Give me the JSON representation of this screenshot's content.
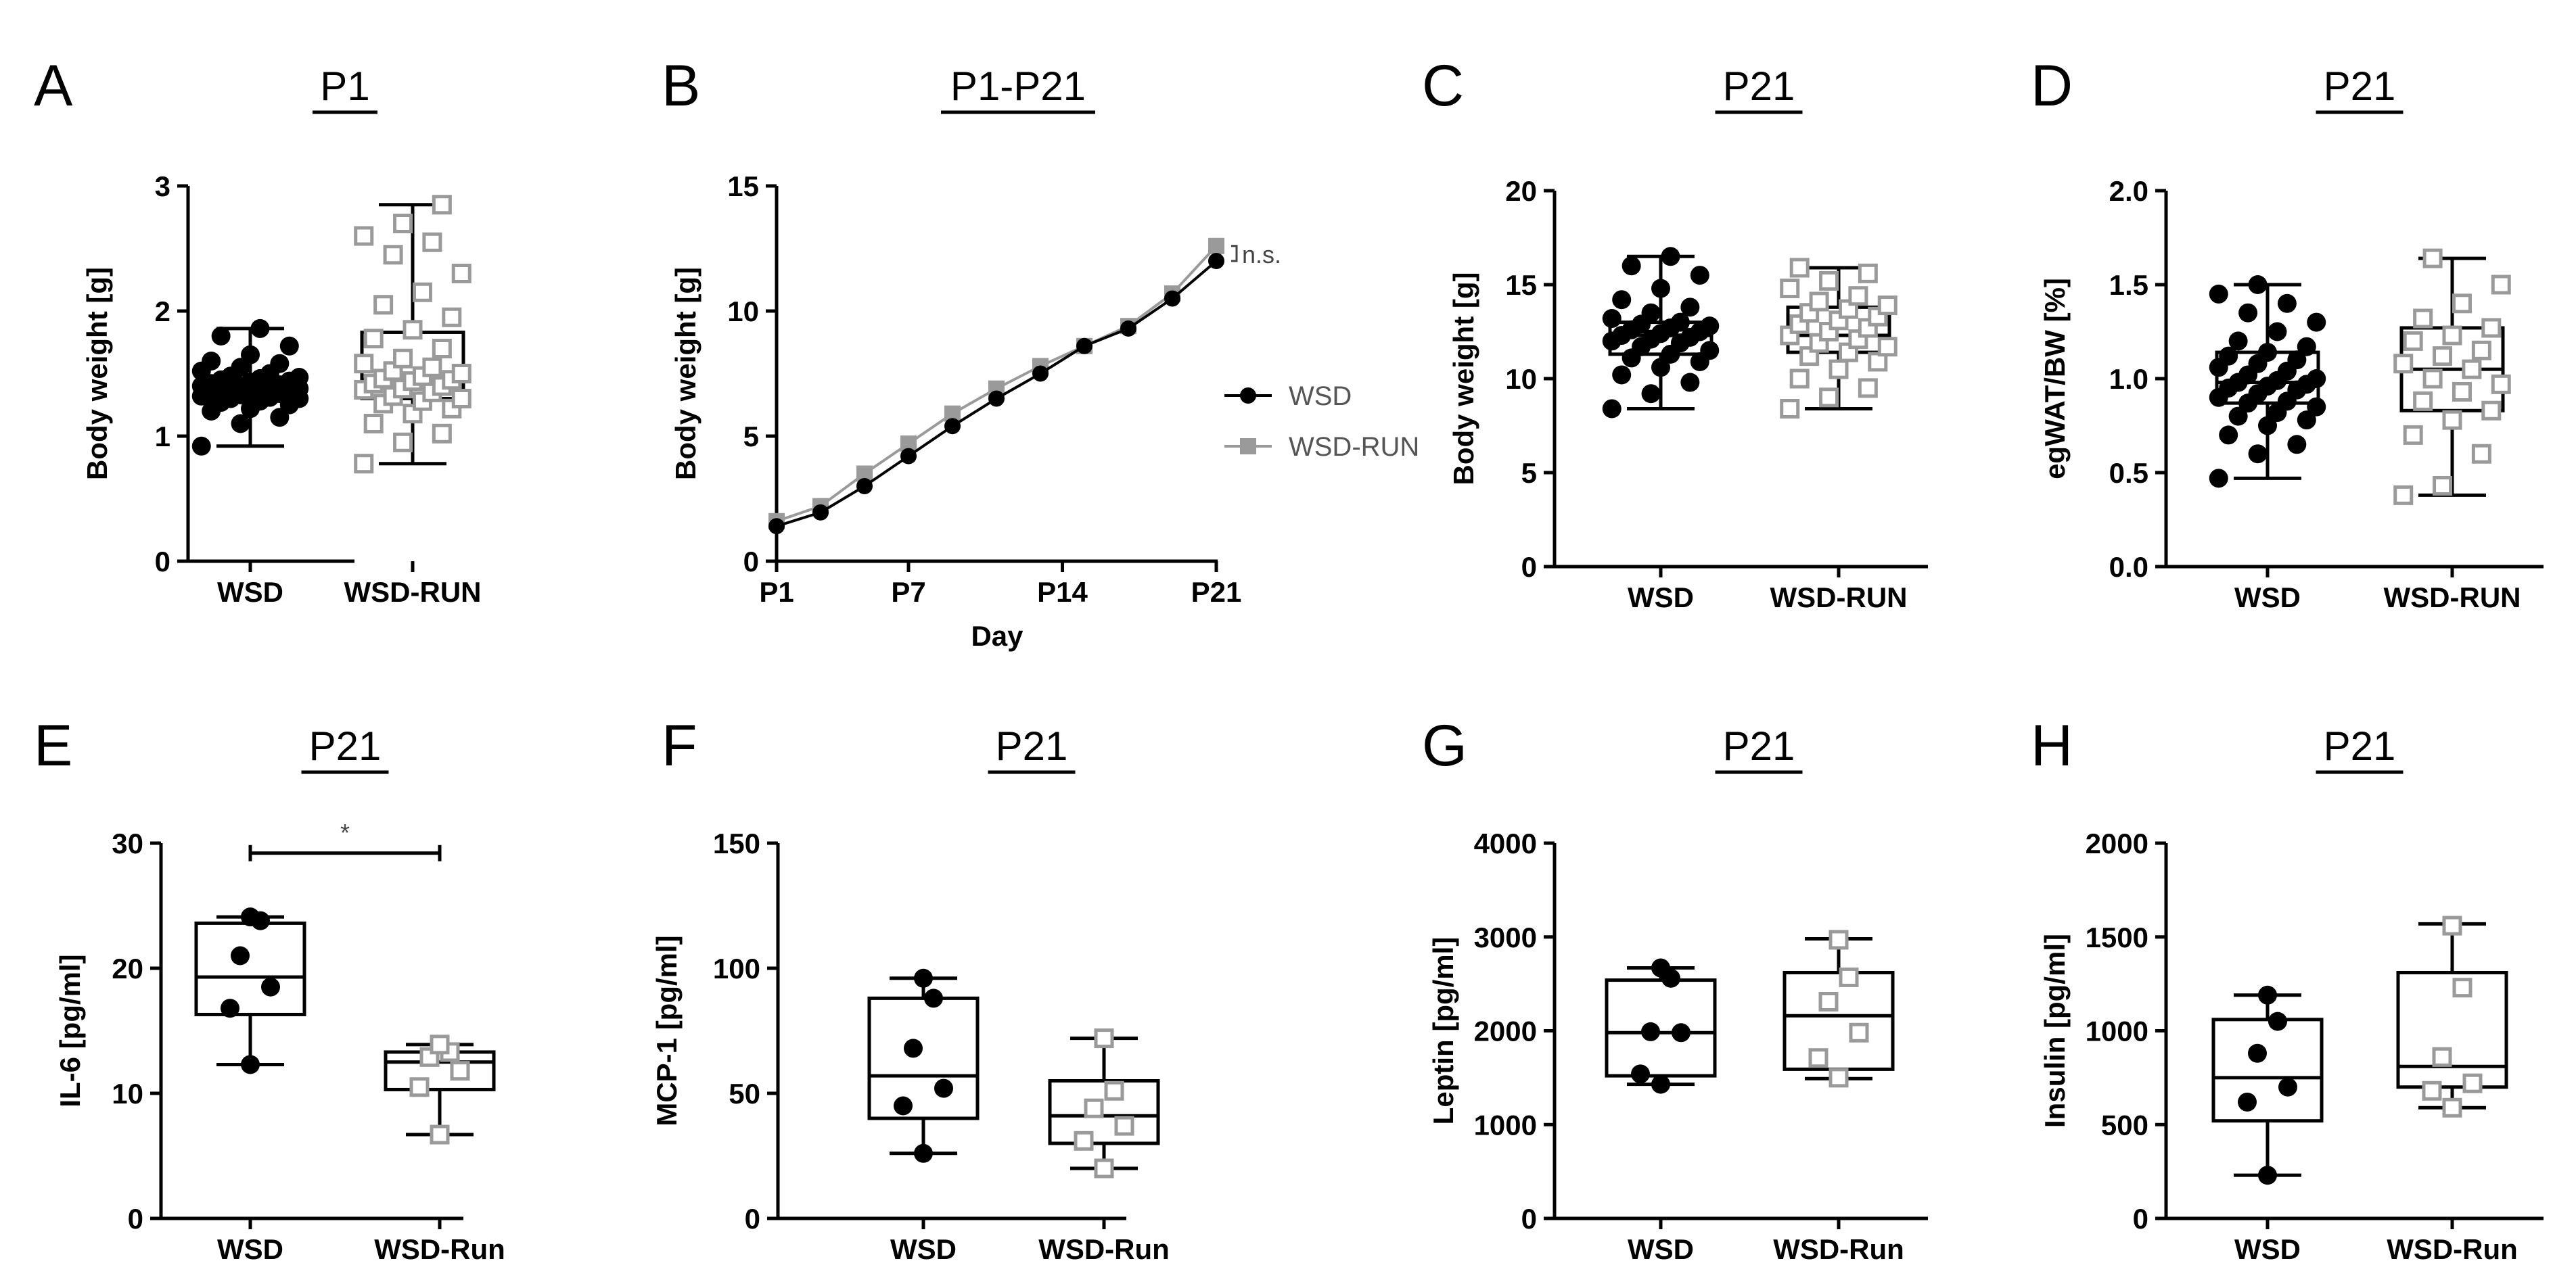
{
  "chart_data": [
    {
      "panel": "A",
      "type": "boxplot",
      "title": "P1",
      "ylabel": "Body weight [g]",
      "xlabel": "",
      "ylim": [
        0,
        3
      ],
      "yticks": [
        0,
        1,
        2,
        3
      ],
      "ytick_labels": [
        "0",
        "1",
        "2",
        "3"
      ],
      "categories": [
        "WSD",
        "WSD-RUN"
      ],
      "boxes": [
        {
          "name": "WSD",
          "min": 0.92,
          "q1": 1.32,
          "median": 1.38,
          "q3": 1.46,
          "max": 1.86
        },
        {
          "name": "WSD-RUN",
          "min": 0.78,
          "q1": 1.3,
          "median": 1.45,
          "q3": 1.83,
          "max": 2.85
        }
      ],
      "points": [
        [
          0.92,
          1.1,
          1.15,
          1.2,
          1.22,
          1.25,
          1.27,
          1.28,
          1.3,
          1.3,
          1.31,
          1.32,
          1.33,
          1.34,
          1.34,
          1.35,
          1.36,
          1.36,
          1.37,
          1.38,
          1.38,
          1.39,
          1.4,
          1.4,
          1.41,
          1.42,
          1.43,
          1.44,
          1.45,
          1.46,
          1.47,
          1.48,
          1.5,
          1.52,
          1.55,
          1.58,
          1.6,
          1.65,
          1.72,
          1.8,
          1.86
        ],
        [
          0.78,
          0.95,
          1.02,
          1.1,
          1.18,
          1.22,
          1.26,
          1.28,
          1.3,
          1.32,
          1.35,
          1.37,
          1.38,
          1.4,
          1.42,
          1.44,
          1.45,
          1.46,
          1.48,
          1.5,
          1.52,
          1.55,
          1.58,
          1.62,
          1.7,
          1.78,
          1.85,
          1.95,
          2.05,
          2.15,
          2.3,
          2.45,
          2.55,
          2.6,
          2.7,
          2.85
        ]
      ]
    },
    {
      "panel": "B",
      "type": "line",
      "title": "P1-P21",
      "ylabel": "Body weight [g]",
      "xlabel": "Day",
      "ylim": [
        0,
        15
      ],
      "yticks": [
        0,
        5,
        10,
        15
      ],
      "ytick_labels": [
        "0",
        "5",
        "10",
        "15"
      ],
      "xlim": [
        1,
        21
      ],
      "xticks": [
        1,
        7,
        14,
        21
      ],
      "xtick_labels": [
        "P1",
        "P7",
        "P14",
        "P21"
      ],
      "x": [
        1,
        3,
        5,
        7,
        9,
        11,
        13,
        15,
        17,
        19,
        21
      ],
      "series": [
        {
          "name": "WSD",
          "values": [
            1.4,
            1.95,
            3.0,
            4.2,
            5.4,
            6.5,
            7.5,
            8.6,
            9.3,
            10.5,
            12.0
          ]
        },
        {
          "name": "WSD-RUN",
          "values": [
            1.6,
            2.2,
            3.5,
            4.7,
            5.9,
            6.9,
            7.8,
            8.6,
            9.4,
            10.7,
            12.6
          ]
        }
      ],
      "annotation": "n.s."
    },
    {
      "panel": "C",
      "type": "boxplot",
      "title": "P21",
      "ylabel": "Body weight [g]",
      "xlabel": "",
      "ylim": [
        0,
        20
      ],
      "yticks": [
        0,
        5,
        10,
        15,
        20
      ],
      "ytick_labels": [
        "0",
        "5",
        "10",
        "15",
        "20"
      ],
      "categories": [
        "WSD",
        "WSD-RUN"
      ],
      "boxes": [
        {
          "name": "WSD",
          "min": 8.4,
          "q1": 11.3,
          "median": 12.3,
          "q3": 13.0,
          "max": 16.5
        },
        {
          "name": "WSD-RUN",
          "min": 8.4,
          "q1": 11.4,
          "median": 12.3,
          "q3": 13.8,
          "max": 15.9
        }
      ],
      "points": [
        [
          8.4,
          9.2,
          9.8,
          10.2,
          10.6,
          10.9,
          11.1,
          11.3,
          11.5,
          11.7,
          11.9,
          12.0,
          12.1,
          12.2,
          12.3,
          12.4,
          12.5,
          12.6,
          12.7,
          12.8,
          12.9,
          13.0,
          13.2,
          13.5,
          13.8,
          14.2,
          14.8,
          15.5,
          16.0,
          16.5
        ],
        [
          8.4,
          9.0,
          9.5,
          10.0,
          10.5,
          10.9,
          11.2,
          11.4,
          11.7,
          11.9,
          12.1,
          12.3,
          12.5,
          12.7,
          12.9,
          13.1,
          13.3,
          13.5,
          13.7,
          13.9,
          14.1,
          14.4,
          14.8,
          15.2,
          15.6,
          15.9
        ]
      ]
    },
    {
      "panel": "D",
      "type": "boxplot",
      "title": "P21",
      "ylabel": "egWAT/BW [%]",
      "xlabel": "",
      "ylim": [
        0,
        2
      ],
      "yticks": [
        0,
        0.5,
        1.0,
        1.5,
        2.0
      ],
      "ytick_labels": [
        "0.0",
        "0.5",
        "1.0",
        "1.5",
        "2.0"
      ],
      "categories": [
        "WSD",
        "WSD-RUN"
      ],
      "boxes": [
        {
          "name": "WSD",
          "min": 0.47,
          "q1": 0.87,
          "median": 0.98,
          "q3": 1.14,
          "max": 1.5
        },
        {
          "name": "WSD-RUN",
          "min": 0.38,
          "q1": 0.83,
          "median": 1.05,
          "q3": 1.27,
          "max": 1.64
        }
      ],
      "points": [
        [
          0.47,
          0.6,
          0.65,
          0.7,
          0.75,
          0.78,
          0.8,
          0.82,
          0.85,
          0.87,
          0.88,
          0.9,
          0.92,
          0.94,
          0.95,
          0.96,
          0.97,
          0.98,
          0.99,
          1.0,
          1.02,
          1.04,
          1.06,
          1.08,
          1.1,
          1.12,
          1.14,
          1.17,
          1.2,
          1.25,
          1.3,
          1.35,
          1.4,
          1.45,
          1.5
        ],
        [
          0.38,
          0.43,
          0.6,
          0.7,
          0.78,
          0.83,
          0.88,
          0.93,
          0.97,
          1.0,
          1.05,
          1.08,
          1.12,
          1.15,
          1.2,
          1.23,
          1.27,
          1.32,
          1.4,
          1.5,
          1.64
        ]
      ]
    },
    {
      "panel": "E",
      "type": "boxplot",
      "title": "P21",
      "ylabel": "IL-6 [pg/ml]",
      "xlabel": "",
      "ylim": [
        0,
        30
      ],
      "yticks": [
        0,
        10,
        20,
        30
      ],
      "ytick_labels": [
        "0",
        "10",
        "20",
        "30"
      ],
      "categories": [
        "WSD",
        "WSD-Run"
      ],
      "boxes": [
        {
          "name": "WSD",
          "min": 12.3,
          "q1": 16.3,
          "median": 19.3,
          "q3": 23.6,
          "max": 24.1
        },
        {
          "name": "WSD-Run",
          "min": 6.7,
          "q1": 10.3,
          "median": 12.5,
          "q3": 13.3,
          "max": 13.9
        }
      ],
      "points": [
        [
          12.3,
          16.8,
          18.5,
          21.0,
          23.8,
          24.1
        ],
        [
          6.7,
          10.5,
          11.8,
          12.9,
          13.3,
          13.9
        ]
      ],
      "significance": "*"
    },
    {
      "panel": "F",
      "type": "boxplot",
      "title": "P21",
      "ylabel": "MCP-1 [pg/ml]",
      "xlabel": "",
      "ylim": [
        0,
        150
      ],
      "yticks": [
        0,
        50,
        100,
        150
      ],
      "ytick_labels": [
        "0",
        "50",
        "100",
        "150"
      ],
      "categories": [
        "WSD",
        "WSD-Run"
      ],
      "boxes": [
        {
          "name": "WSD",
          "min": 26,
          "q1": 40,
          "median": 57,
          "q3": 88,
          "max": 96
        },
        {
          "name": "WSD-Run",
          "min": 20,
          "q1": 30,
          "median": 41,
          "q3": 55,
          "max": 72
        }
      ],
      "points": [
        [
          26,
          45,
          52,
          68,
          88,
          96
        ],
        [
          20,
          31,
          37,
          44,
          51,
          72
        ]
      ]
    },
    {
      "panel": "G",
      "type": "boxplot",
      "title": "P21",
      "ylabel": "Leptin [pg/ml]",
      "xlabel": "",
      "ylim": [
        0,
        4000
      ],
      "yticks": [
        0,
        1000,
        2000,
        3000,
        4000
      ],
      "ytick_labels": [
        "0",
        "1000",
        "2000",
        "3000",
        "4000"
      ],
      "categories": [
        "WSD",
        "WSD-Run"
      ],
      "boxes": [
        {
          "name": "WSD",
          "min": 1430,
          "q1": 1520,
          "median": 1980,
          "q3": 2540,
          "max": 2670
        },
        {
          "name": "WSD-Run",
          "min": 1490,
          "q1": 1590,
          "median": 2160,
          "q3": 2620,
          "max": 2980
        }
      ],
      "points": [
        [
          1430,
          1540,
          1980,
          1990,
          2560,
          2670
        ],
        [
          1500,
          1710,
          1980,
          2310,
          2570,
          2970
        ]
      ]
    },
    {
      "panel": "H",
      "type": "boxplot",
      "title": "P21",
      "ylabel": "Insulin [pg/ml]",
      "xlabel": "",
      "ylim": [
        0,
        2000
      ],
      "yticks": [
        0,
        500,
        1000,
        1500,
        2000
      ],
      "ytick_labels": [
        "0",
        "500",
        "1000",
        "1500",
        "2000"
      ],
      "categories": [
        "WSD",
        "WSD-Run"
      ],
      "boxes": [
        {
          "name": "WSD",
          "min": 230,
          "q1": 520,
          "median": 750,
          "q3": 1060,
          "max": 1190
        },
        {
          "name": "WSD-Run",
          "min": 590,
          "q1": 700,
          "median": 810,
          "q3": 1310,
          "max": 1570
        }
      ],
      "points": [
        [
          230,
          620,
          700,
          880,
          1050,
          1190
        ],
        [
          590,
          680,
          720,
          860,
          1230,
          1560
        ]
      ]
    }
  ],
  "legend": {
    "series": [
      "WSD",
      "WSD-RUN"
    ]
  },
  "colors": {
    "wsd": "#000000",
    "run": "#9a9a9a",
    "axis": "#000000"
  }
}
